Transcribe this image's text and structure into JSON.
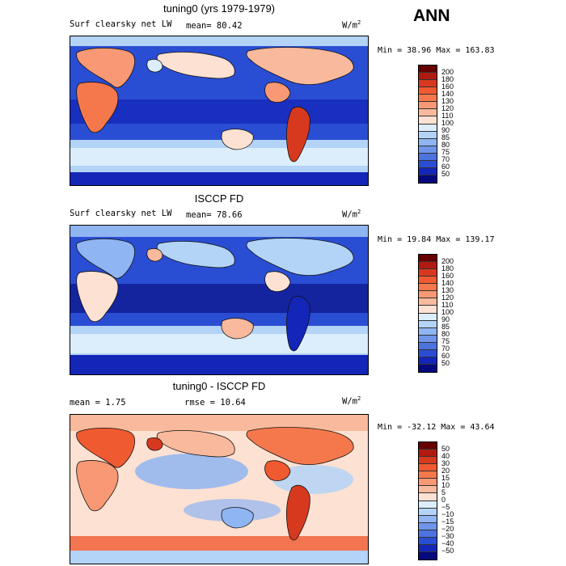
{
  "season_label": "ANN",
  "panels": [
    {
      "title": "tuning0 (yrs 1979-1979)",
      "field_label": "Surf clearsky net LW",
      "stat1": "mean=  80.42",
      "stat2": "",
      "units": "W/m",
      "units_exp": "2",
      "minmax": "Min =  38.96 Max = 163.83",
      "levels": [
        "200",
        "180",
        "160",
        "140",
        "130",
        "120",
        "110",
        "100",
        "90",
        "85",
        "80",
        "75",
        "70",
        "60",
        "50"
      ],
      "colors": [
        "#670000",
        "#b01a10",
        "#d7391f",
        "#ef5a30",
        "#f5784d",
        "#f89874",
        "#f9b99c",
        "#fde1d2",
        "#dceefb",
        "#b3d3f7",
        "#8fb5f2",
        "#6f95ea",
        "#4d73e0",
        "#2a4ed3",
        "#1426b8",
        "#06087d"
      ]
    },
    {
      "title": "ISCCP FD",
      "field_label": "Surf clearsky net LW",
      "stat1": "mean=  78.66",
      "stat2": "",
      "units": "W/m",
      "units_exp": "2",
      "minmax": "Min =  19.84 Max = 139.17",
      "levels": [
        "200",
        "180",
        "160",
        "140",
        "130",
        "120",
        "110",
        "100",
        "90",
        "85",
        "80",
        "75",
        "70",
        "60",
        "50"
      ],
      "colors": [
        "#670000",
        "#b01a10",
        "#d7391f",
        "#ef5a30",
        "#f5784d",
        "#f89874",
        "#f9b99c",
        "#fde1d2",
        "#dceefb",
        "#b3d3f7",
        "#8fb5f2",
        "#6f95ea",
        "#4d73e0",
        "#2a4ed3",
        "#1426b8",
        "#06087d"
      ]
    },
    {
      "title": "tuning0 - ISCCP FD",
      "field_label": "",
      "stat1": "mean =   1.75",
      "stat2": "rmse =  10.64",
      "units": "W/m",
      "units_exp": "2",
      "minmax": "Min = -32.12 Max =  43.64",
      "levels": [
        "50",
        "40",
        "30",
        "20",
        "15",
        "10",
        "5",
        "0",
        "−5",
        "−10",
        "−15",
        "−20",
        "−30",
        "−40",
        "−50"
      ],
      "colors": [
        "#670000",
        "#b01a10",
        "#d7391f",
        "#ef5a30",
        "#f5784d",
        "#f89874",
        "#f9b99c",
        "#fde1d2",
        "#dceefb",
        "#b3d3f7",
        "#8fb5f2",
        "#6f95ea",
        "#4d73e0",
        "#2a4ed3",
        "#1426b8",
        "#06087d"
      ]
    }
  ],
  "chart_data": [
    {
      "type": "heatmap",
      "title": "tuning0 (yrs 1979-1979)",
      "variable": "Surf clearsky net LW",
      "units": "W/m2",
      "mean": 80.42,
      "min": 38.96,
      "max": 163.83,
      "contour_levels": [
        50,
        60,
        70,
        75,
        80,
        85,
        90,
        100,
        110,
        120,
        130,
        140,
        160,
        180,
        200
      ],
      "season": "ANN"
    },
    {
      "type": "heatmap",
      "title": "ISCCP FD",
      "variable": "Surf clearsky net LW",
      "units": "W/m2",
      "mean": 78.66,
      "min": 19.84,
      "max": 139.17,
      "contour_levels": [
        50,
        60,
        70,
        75,
        80,
        85,
        90,
        100,
        110,
        120,
        130,
        140,
        160,
        180,
        200
      ],
      "season": "ANN"
    },
    {
      "type": "heatmap",
      "title": "tuning0 - ISCCP FD",
      "units": "W/m2",
      "mean": 1.75,
      "rmse": 10.64,
      "min": -32.12,
      "max": 43.64,
      "contour_levels": [
        -50,
        -40,
        -30,
        -20,
        -15,
        -10,
        -5,
        0,
        5,
        10,
        15,
        20,
        30,
        40,
        50
      ],
      "season": "ANN"
    }
  ]
}
